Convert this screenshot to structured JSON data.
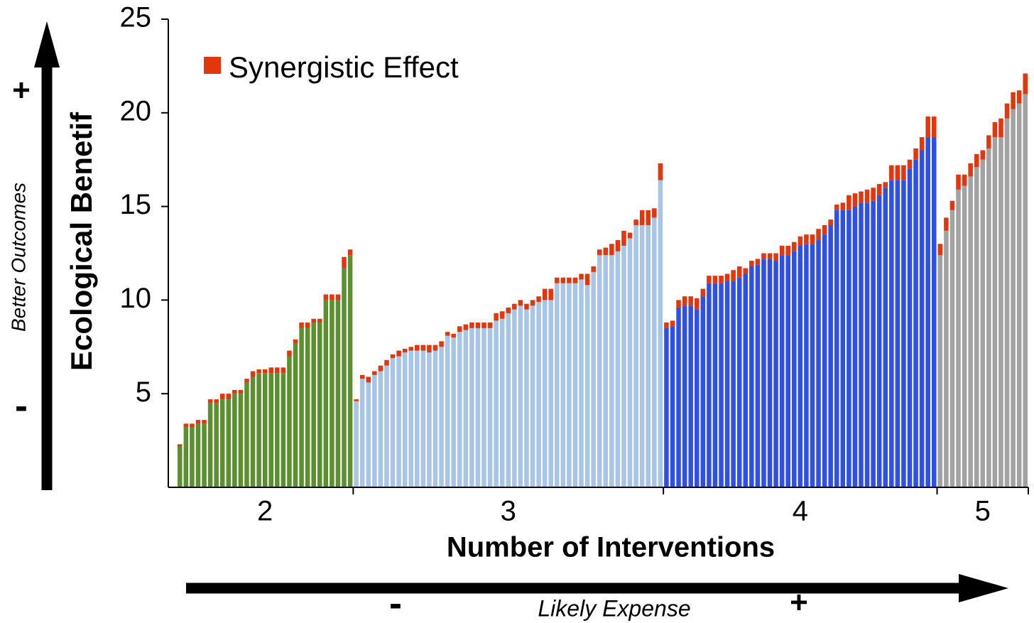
{
  "chart_data": {
    "type": "stacked-bar",
    "x_label": "Number of Interventions",
    "y_label": "Ecological Benetif",
    "ylim": [
      0,
      25
    ],
    "yticks": [
      5,
      10,
      15,
      20,
      25
    ],
    "legend_name": "Synergistic Effect",
    "synergy_color": "#e2360c",
    "annotations": {
      "y_arrow_label": "Better Outcomes",
      "y_plus": "+",
      "y_minus": "-",
      "x_arrow_label": "Likely Expense",
      "x_minus": "-",
      "x_plus": "+"
    },
    "groups": [
      {
        "label": "2",
        "color": "#5b8f2f",
        "values": [
          2.2,
          3.2,
          3.2,
          3.4,
          3.4,
          4.5,
          4.5,
          4.7,
          4.7,
          5.0,
          5.0,
          5.6,
          5.9,
          6.1,
          6.1,
          6.1,
          6.1,
          6.1,
          7.0,
          7.7,
          8.5,
          8.5,
          8.8,
          8.8,
          10.0,
          10.0,
          10.0,
          11.7,
          12.4
        ],
        "synergy": [
          0.1,
          0.2,
          0.2,
          0.2,
          0.2,
          0.2,
          0.2,
          0.3,
          0.3,
          0.2,
          0.2,
          0.2,
          0.3,
          0.2,
          0.2,
          0.3,
          0.3,
          0.3,
          0.3,
          0.2,
          0.3,
          0.3,
          0.2,
          0.2,
          0.3,
          0.3,
          0.3,
          0.6,
          0.3
        ]
      },
      {
        "label": "3",
        "color": "#a8c5e6",
        "values": [
          4.6,
          5.8,
          5.6,
          6.0,
          6.2,
          6.5,
          6.9,
          7.0,
          7.2,
          7.3,
          7.3,
          7.3,
          7.2,
          7.3,
          7.5,
          8.1,
          8.0,
          8.3,
          8.4,
          8.5,
          8.5,
          8.5,
          8.5,
          8.9,
          9.0,
          9.3,
          9.5,
          9.7,
          9.5,
          9.7,
          9.9,
          10.0,
          10.0,
          10.9,
          10.9,
          10.9,
          10.9,
          11.1,
          10.8,
          11.5,
          12.4,
          12.4,
          12.4,
          12.6,
          12.9,
          13.3,
          14.0,
          14.0,
          14.0,
          14.4,
          16.4
        ],
        "synergy": [
          0.1,
          0.2,
          0.3,
          0.2,
          0.3,
          0.3,
          0.2,
          0.3,
          0.2,
          0.2,
          0.3,
          0.3,
          0.4,
          0.3,
          0.3,
          0.2,
          0.2,
          0.3,
          0.3,
          0.3,
          0.3,
          0.3,
          0.3,
          0.4,
          0.4,
          0.3,
          0.3,
          0.3,
          0.3,
          0.3,
          0.3,
          0.6,
          0.6,
          0.3,
          0.3,
          0.3,
          0.3,
          0.3,
          0.6,
          0.3,
          0.3,
          0.4,
          0.6,
          0.6,
          0.8,
          0.3,
          0.3,
          0.8,
          0.8,
          0.5,
          0.9
        ]
      },
      {
        "label": "4",
        "color": "#2f50e4",
        "values": [
          8.5,
          8.6,
          9.6,
          9.7,
          9.7,
          9.5,
          10.2,
          10.9,
          10.9,
          10.9,
          11.0,
          11.0,
          11.2,
          11.4,
          11.8,
          11.9,
          12.2,
          12.2,
          12.1,
          12.4,
          12.4,
          12.6,
          12.9,
          13.0,
          13.0,
          13.2,
          13.5,
          14.0,
          14.8,
          14.8,
          14.8,
          15.0,
          15.2,
          15.2,
          15.3,
          15.6,
          16.0,
          16.4,
          16.4,
          16.4,
          17.0,
          17.5,
          18.0,
          18.7,
          18.7
        ],
        "synergy": [
          0.3,
          0.3,
          0.4,
          0.5,
          0.5,
          0.6,
          0.4,
          0.4,
          0.4,
          0.4,
          0.4,
          0.6,
          0.6,
          0.3,
          0.3,
          0.3,
          0.3,
          0.3,
          0.4,
          0.5,
          0.5,
          0.5,
          0.5,
          0.5,
          0.5,
          0.6,
          0.5,
          0.3,
          0.3,
          0.4,
          0.8,
          0.7,
          0.6,
          0.7,
          0.7,
          0.6,
          0.3,
          0.8,
          0.8,
          0.8,
          0.5,
          0.6,
          0.7,
          1.1,
          1.1
        ]
      },
      {
        "label": "5",
        "color": "#a2a2a2",
        "values": [
          12.4,
          13.7,
          14.8,
          15.9,
          16.1,
          16.6,
          17.1,
          17.5,
          18.1,
          18.7,
          18.7,
          19.7,
          20.2,
          20.5,
          21.0
        ],
        "synergy": [
          0.6,
          0.7,
          0.5,
          0.8,
          0.6,
          0.7,
          0.7,
          0.5,
          0.7,
          0.8,
          1.0,
          0.8,
          0.9,
          0.7,
          1.1
        ]
      }
    ]
  }
}
